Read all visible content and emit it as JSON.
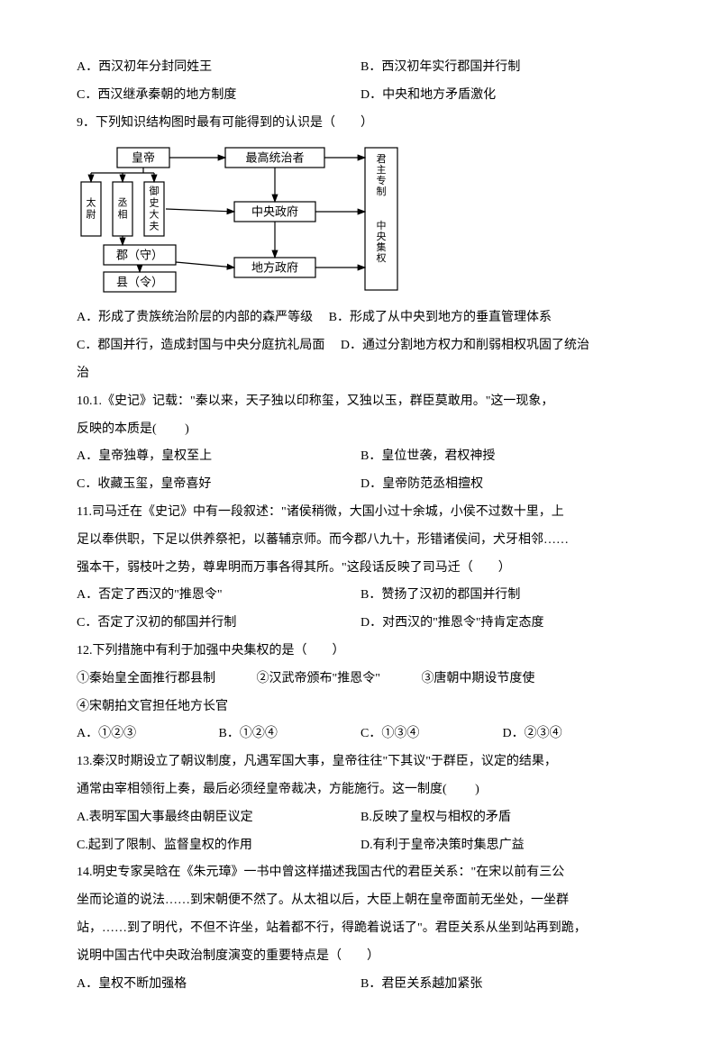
{
  "q8": {
    "optA": "A．西汉初年分封同姓王",
    "optB": "B．西汉初年实行郡国并行制",
    "optC": "C．西汉继承秦朝的地方制度",
    "optD": "D．中央和地方矛盾激化"
  },
  "q9": {
    "stem": "9．下列知识结构图时最有可能得到的认识是（　　）",
    "optA": "A．形成了贵族统治阶层的内部的森严等级",
    "optB": "B．形成了从中央到地方的垂直管理体系",
    "optC": "C．郡国并行，造成封国与中央分庭抗礼局面",
    "optD": "D．通过分割地方权力和削弱相权巩固了统治",
    "optD_tail": "治"
  },
  "q10": {
    "stem1": "10.1.《史记》记载：\"秦以来，天子独以印称玺，又独以玉，群臣莫敢用。\"这一现象，",
    "stem2": "反映的本质是(　　 )",
    "optA": "A．皇帝独尊，皇权至上",
    "optB": "B．皇位世袭，君权神授",
    "optC": "C．收藏玉玺，皇帝喜好",
    "optD": "D．皇帝防范丞相擅权"
  },
  "q11": {
    "stem1": "11.司马迁在《史记》中有一段叙述：\"诸侯稍微，大国小过十余城，小侯不过数十里，上",
    "stem2": "足以奉供职，下足以供养祭祀，以蕃辅京师。而今郡八九十，形错诸侯间，犬牙相邻……",
    "stem3": "强本干，弱枝叶之势，尊卑明而万事各得其所。\"这段话反映了司马迁（　　）",
    "optA": "A．否定了西汉的\"推恩令\"",
    "optB": "B．赞扬了汉初的郡国并行制",
    "optC": "C．否定了汉初的郁国并行制",
    "optD": "D．对西汉的\"推恩令\"持肯定态度"
  },
  "q12": {
    "stem": "12.下列措施中有利于加强中央集权的是（　　）",
    "item1": "①秦始皇全面推行郡县制",
    "item2": "②汉武帝颁布\"推恩令\"",
    "item3": "③唐朝中期设节度使",
    "item4": "④宋朝拍文官担任地方长官",
    "optA": "A．①②③",
    "optB": "B．①②④",
    "optC": "C．①③④",
    "optD": "D．②③④"
  },
  "q13": {
    "stem1": "13.秦汉时期设立了朝议制度，凡遇军国大事，皇帝往往\"下其议\"于群臣，议定的结果，",
    "stem2": "通常由宰相领衔上奏，最后必须经皇帝裁决，方能施行。这一制度(　 　)",
    "optA": "A.表明军国大事最终由朝臣议定",
    "optB": "B.反映了皇权与相权的矛盾",
    "optC": "C.起到了限制、监督皇权的作用",
    "optD": "D.有利于皇帝决策时集思广益"
  },
  "q14": {
    "stem1": "14.明史专家吴晗在《朱元璋》一书中曾这样描述我国古代的君臣关系：\"在宋以前有三公",
    "stem2": "坐而论道的说法……到宋朝便不然了。从太祖以后，大臣上朝在皇帝面前无坐处，一坐群",
    "stem3": "站，……到了明代，不但不许坐，站着都不行，得跪着说话了\"。君臣关系从坐到站再到跪，",
    "stem4": "说明中国古代中央政治制度演变的重要特点是（　　）",
    "optA": "A．皇权不断加强格",
    "optB": "B．君臣关系越加紧张"
  },
  "diagram": {
    "nodes": {
      "emperor": "皇帝",
      "taiwei": "太尉",
      "chengxiang": "丞相",
      "yushidafu": "御史大夫",
      "jun": "郡（守）",
      "xian": "县（令）",
      "supreme": "最高统治者",
      "central": "中央政府",
      "local": "地方政府",
      "right1": "君主专制",
      "right2": "中央集权"
    },
    "style": {
      "stroke": "#000000",
      "fill": "#ffffff",
      "font_size": 13,
      "small_font_size": 11,
      "line_width": 1.2
    }
  }
}
